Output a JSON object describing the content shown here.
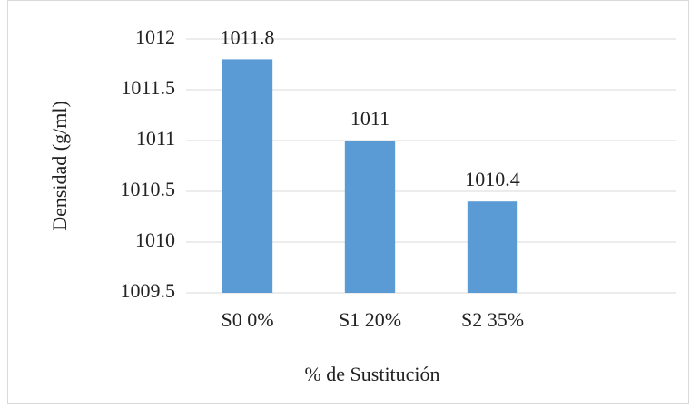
{
  "chart_data": {
    "type": "bar",
    "categories": [
      "S0 0%",
      "S1 20%",
      "S2 35%",
      null
    ],
    "values": [
      1011.8,
      1011,
      1010.4,
      null
    ],
    "color": "#5b9bd5",
    "ylim": [
      1009.5,
      1012
    ],
    "yticks": [
      1009.5,
      1010,
      1010.5,
      1011,
      1011.5,
      1012
    ],
    "grid": true,
    "y_label": "Densidad  (g/ml)",
    "x_label": "% de Sustitución"
  }
}
